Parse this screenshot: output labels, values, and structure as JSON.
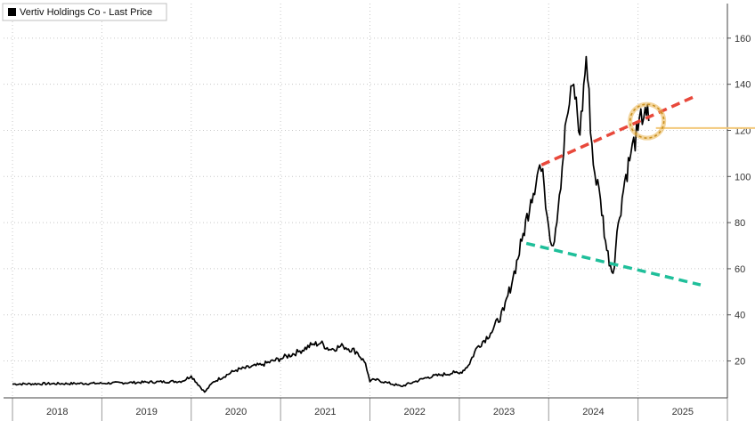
{
  "chart_data": {
    "type": "line",
    "title": "",
    "xlabel": "",
    "ylabel": "",
    "legend": {
      "placement": "top-left",
      "entries": [
        "Vertiv Holdings Co - Last Price"
      ]
    },
    "grid": true,
    "y_axis_side": "right",
    "ylim": [
      4,
      175
    ],
    "y_ticks": [
      20,
      40,
      60,
      80,
      100,
      120,
      140,
      160
    ],
    "x_tick_labels": [
      "2018",
      "2019",
      "2020",
      "2021",
      "2022",
      "2023",
      "2024",
      "2025"
    ],
    "x_year_boundaries": [
      2018,
      2019,
      2020,
      2021,
      2022,
      2023,
      2024,
      2025,
      2026
    ],
    "xlim": [
      2017.9,
      2026.0
    ],
    "series": [
      {
        "name": "Vertiv Holdings Co - Last Price",
        "color": "#000000",
        "x": [
          2018.0,
          2019.0,
          2019.9,
          2020.0,
          2020.15,
          2020.25,
          2020.5,
          2020.8,
          2021.0,
          2021.2,
          2021.35,
          2021.45,
          2021.55,
          2021.7,
          2021.85,
          2021.95,
          2022.0,
          2022.05,
          2022.2,
          2022.35,
          2022.5,
          2022.65,
          2022.8,
          2022.95,
          2023.0,
          2023.1,
          2023.2,
          2023.35,
          2023.5,
          2023.6,
          2023.7,
          2023.8,
          2023.9,
          2023.95,
          2024.0,
          2024.05,
          2024.12,
          2024.2,
          2024.28,
          2024.35,
          2024.42,
          2024.5,
          2024.58,
          2024.65,
          2024.72,
          2024.78,
          2024.85,
          2024.92,
          2025.0,
          2025.08,
          2025.12
        ],
        "values": [
          10,
          10.3,
          11.2,
          13.5,
          6.5,
          11,
          16,
          18.5,
          21,
          24,
          27,
          27.8,
          25,
          26.5,
          24,
          19,
          11,
          12,
          10.5,
          9,
          11,
          13,
          14,
          15,
          14.5,
          18,
          26,
          32,
          42,
          56,
          72,
          90,
          105,
          96,
          78,
          70,
          92,
          125,
          140,
          118,
          152,
          105,
          90,
          68,
          58,
          80,
          98,
          110,
          120,
          130,
          124
        ]
      }
    ],
    "annotations": [
      {
        "type": "resistance-trendline",
        "color": "#e8483b",
        "from": [
          2023.92,
          105
        ],
        "to": [
          2025.65,
          135
        ]
      },
      {
        "type": "support-trendline",
        "color": "#1fbf9a",
        "from": [
          2023.75,
          71
        ],
        "to": [
          2025.7,
          53
        ]
      },
      {
        "type": "level-line",
        "color": "#f2c87a",
        "value": 121,
        "from_x": 2025.2
      },
      {
        "type": "highlight-circle",
        "color": "#e9b34a",
        "center": [
          2025.1,
          124
        ]
      }
    ]
  }
}
